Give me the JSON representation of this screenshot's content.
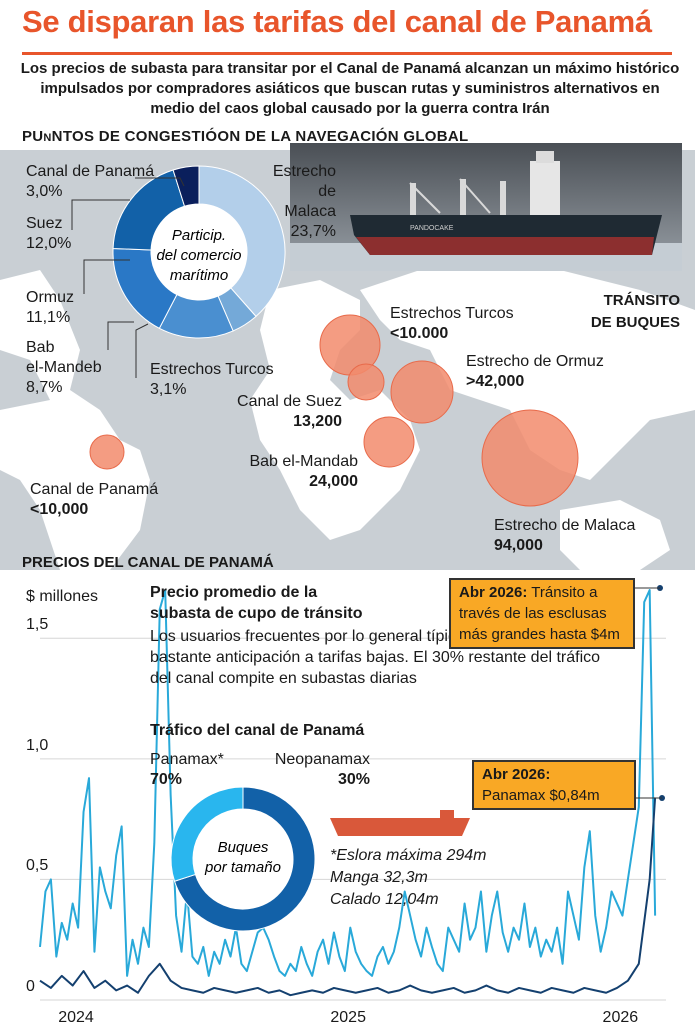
{
  "title": "Se disparan las tarifas del canal de Panamá",
  "subtitle": "Los precios de subasta para transitar por el Canal de Panamá alcanzan un máximo histórico impulsados por compradores asiáticos que buscan rutas y suministros alternativos en medio del caos global causado por la guerra contra Irán",
  "section_congestion": "PUnNTOS DE CONGESTIÓON DE LA NAVEGACIÓN GLOBAL",
  "section_transit": [
    "TRÁNSITO",
    "DE BUQUES"
  ],
  "section_prices": "PRECIOS DEL CANAL DE PANAMÁ",
  "colors": {
    "accent": "#e8552b",
    "light_series": "#29a9d9",
    "dark_series": "#14406f",
    "bubble": "#f28b6c",
    "map_ocean": "#c9cfd4",
    "map_land": "#ffffff",
    "callout": "#f9a825"
  },
  "chart_data": [
    {
      "type": "pie",
      "center_label": [
        "Particip.",
        "del comercio",
        "marítimo"
      ],
      "slices": [
        {
          "label": "Estrecho de Malaca",
          "value": 23.7,
          "display": "23,7%",
          "color": "#b3cfea"
        },
        {
          "label": "Estrechos Turcos",
          "value": 3.1,
          "display": "3,1%",
          "color": "#74a9d8"
        },
        {
          "label": "Bab el-Mandeb",
          "value": 8.7,
          "display": "8,7%",
          "color": "#4a8fd0"
        },
        {
          "label": "Ormuz",
          "value": 11.1,
          "display": "11,1%",
          "color": "#2a78c6"
        },
        {
          "label": "Suez",
          "value": 12.0,
          "display": "12,0%",
          "color": "#1261a8"
        },
        {
          "label": "Canal de Panamá",
          "value": 3.0,
          "display": "3,0%",
          "color": "#0a1f5c"
        }
      ]
    },
    {
      "type": "scatter",
      "title": "TRÁNSITO DE BUQUES",
      "bubbles": [
        {
          "name": "Estrechos Turcos",
          "value_text": "<10.000",
          "value": 10000
        },
        {
          "name": "Estrecho de Ormuz",
          "value_text": ">42,000",
          "value": 42000
        },
        {
          "name": "Canal de Suez",
          "value_text": "13,200",
          "value": 13200
        },
        {
          "name": "Bab el-Mandab",
          "value_text": "24,000",
          "value": 24000
        },
        {
          "name": "Canal de Panamá",
          "value_text": "<10,000",
          "value": 10000
        },
        {
          "name": "Estrecho de Malaca",
          "value_text": "94,000",
          "value": 94000
        }
      ]
    },
    {
      "type": "line",
      "ylabel": "$ millones",
      "ylim": [
        0,
        1.7
      ],
      "yticks": [
        {
          "v": 0,
          "label": "0"
        },
        {
          "v": 0.5,
          "label": "0,5"
        },
        {
          "v": 1.0,
          "label": "1,0"
        },
        {
          "v": 1.5,
          "label": "1,5"
        }
      ],
      "xlim": [
        2024.0,
        2026.3
      ],
      "xticks": [
        2024,
        2025,
        2026
      ],
      "series": [
        {
          "name": "Neopanamax",
          "color": "#29a9d9",
          "x": [
            2024.0,
            2024.02,
            2024.04,
            2024.06,
            2024.08,
            2024.1,
            2024.12,
            2024.14,
            2024.16,
            2024.18,
            2024.2,
            2024.22,
            2024.24,
            2024.26,
            2024.28,
            2024.3,
            2024.32,
            2024.34,
            2024.36,
            2024.38,
            2024.4,
            2024.42,
            2024.44,
            2024.46,
            2024.48,
            2024.5,
            2024.52,
            2024.54,
            2024.56,
            2024.58,
            2024.6,
            2024.62,
            2024.64,
            2024.66,
            2024.68,
            2024.7,
            2024.72,
            2024.74,
            2024.76,
            2024.78,
            2024.8,
            2024.82,
            2024.84,
            2024.86,
            2024.88,
            2024.9,
            2024.92,
            2024.94,
            2024.96,
            2024.98,
            2025.0,
            2025.02,
            2025.04,
            2025.06,
            2025.08,
            2025.1,
            2025.12,
            2025.14,
            2025.16,
            2025.18,
            2025.2,
            2025.22,
            2025.24,
            2025.26,
            2025.28,
            2025.3,
            2025.32,
            2025.34,
            2025.36,
            2025.38,
            2025.4,
            2025.42,
            2025.44,
            2025.46,
            2025.48,
            2025.5,
            2025.52,
            2025.54,
            2025.56,
            2025.58,
            2025.6,
            2025.62,
            2025.64,
            2025.66,
            2025.68,
            2025.7,
            2025.72,
            2025.74,
            2025.76,
            2025.78,
            2025.8,
            2025.82,
            2025.84,
            2025.86,
            2025.88,
            2025.9,
            2025.92,
            2025.94,
            2025.96,
            2025.98,
            2026.0,
            2026.02,
            2026.04,
            2026.06,
            2026.08,
            2026.1,
            2026.12,
            2026.14,
            2026.16,
            2026.18,
            2026.2,
            2026.22,
            2026.24,
            2026.26
          ],
          "y": [
            0.22,
            0.45,
            0.5,
            0.18,
            0.32,
            0.25,
            0.4,
            0.3,
            0.78,
            0.92,
            0.2,
            0.55,
            0.45,
            0.38,
            0.6,
            0.72,
            0.1,
            0.25,
            0.15,
            0.3,
            0.22,
            0.65,
            1.62,
            1.7,
            0.85,
            0.35,
            0.2,
            0.45,
            0.18,
            0.15,
            0.22,
            0.1,
            0.2,
            0.15,
            0.25,
            0.18,
            0.3,
            0.15,
            0.12,
            0.2,
            0.28,
            0.3,
            0.25,
            0.18,
            0.12,
            0.1,
            0.15,
            0.12,
            0.22,
            0.15,
            0.1,
            0.2,
            0.25,
            0.15,
            0.28,
            0.18,
            0.12,
            0.3,
            0.2,
            0.15,
            0.12,
            0.1,
            0.18,
            0.22,
            0.15,
            0.2,
            0.3,
            0.45,
            0.35,
            0.25,
            0.18,
            0.3,
            0.22,
            0.15,
            0.12,
            0.3,
            0.25,
            0.2,
            0.4,
            0.25,
            0.3,
            0.45,
            0.2,
            0.35,
            0.45,
            0.28,
            0.2,
            0.3,
            0.25,
            0.4,
            0.22,
            0.3,
            0.18,
            0.25,
            0.2,
            0.3,
            0.15,
            0.45,
            0.35,
            0.25,
            0.55,
            0.7,
            0.35,
            0.2,
            0.3,
            0.45,
            0.4,
            0.35,
            0.5,
            0.65,
            0.8,
            1.65,
            1.7,
            0.35
          ]
        },
        {
          "name": "Panamax",
          "color": "#14406f",
          "x": [
            2024.0,
            2024.04,
            2024.08,
            2024.12,
            2024.16,
            2024.2,
            2024.24,
            2024.28,
            2024.32,
            2024.36,
            2024.4,
            2024.44,
            2024.48,
            2024.52,
            2024.56,
            2024.6,
            2024.64,
            2024.68,
            2024.72,
            2024.76,
            2024.8,
            2024.84,
            2024.88,
            2024.92,
            2024.96,
            2025.0,
            2025.04,
            2025.08,
            2025.12,
            2025.16,
            2025.2,
            2025.24,
            2025.28,
            2025.32,
            2025.36,
            2025.4,
            2025.44,
            2025.48,
            2025.52,
            2025.56,
            2025.6,
            2025.64,
            2025.68,
            2025.72,
            2025.76,
            2025.8,
            2025.84,
            2025.88,
            2025.92,
            2025.96,
            2026.0,
            2026.04,
            2026.08,
            2026.12,
            2026.16,
            2026.2,
            2026.24,
            2026.26
          ],
          "y": [
            0.08,
            0.05,
            0.1,
            0.06,
            0.12,
            0.05,
            0.08,
            0.04,
            0.06,
            0.03,
            0.1,
            0.15,
            0.08,
            0.05,
            0.04,
            0.03,
            0.05,
            0.04,
            0.03,
            0.04,
            0.05,
            0.03,
            0.04,
            0.02,
            0.03,
            0.04,
            0.03,
            0.05,
            0.04,
            0.03,
            0.04,
            0.05,
            0.03,
            0.04,
            0.06,
            0.04,
            0.03,
            0.04,
            0.05,
            0.03,
            0.04,
            0.06,
            0.04,
            0.03,
            0.05,
            0.04,
            0.03,
            0.05,
            0.04,
            0.03,
            0.05,
            0.04,
            0.03,
            0.05,
            0.08,
            0.15,
            0.5,
            0.84
          ]
        }
      ]
    },
    {
      "type": "pie",
      "title": "Tráfico del canal de Panamá",
      "center_label": [
        "Buques",
        "por tamaño"
      ],
      "slices": [
        {
          "label": "Panamax*",
          "value": 70,
          "display": "70%",
          "color": "#1261a8"
        },
        {
          "label": "Neopanamax",
          "value": 30,
          "display": "30%",
          "color": "#29b6ee"
        }
      ]
    }
  ],
  "labels": {
    "panama_share": "Canal de Panamá",
    "malaca_share": [
      "Estrecho",
      "de",
      "Malaca"
    ],
    "suez_share": "Suez",
    "ormuz_share": "Ormuz",
    "bab_share": [
      "Bab",
      "el-Mandeb"
    ],
    "turcos_share": "Estrechos Turcos"
  },
  "price_callouts": {
    "head": [
      "Precio promedio de la",
      "subasta de cupo de tránsito"
    ],
    "body": "Los usuarios frecuentes por lo general típicamente reservan con bastante anticipación a tarifas bajas. El 30% restante del tráfico del canal compite en subastas diarias",
    "box1_date": "Abr 2026:",
    "box1_text": [
      "Tránsito a",
      "través de las esclusas",
      "más grandes hasta $4m"
    ],
    "box2_date": "Abr 2026:",
    "box2_text": "Panamax $0,84m"
  },
  "specs": [
    "*Eslora máxima 294m",
    "Manga 32,3m",
    "Calado 12,04m"
  ],
  "ship_name": "PANDOCAKE"
}
